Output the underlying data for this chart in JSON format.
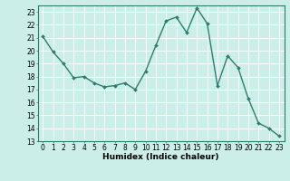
{
  "x": [
    0,
    1,
    2,
    3,
    4,
    5,
    6,
    7,
    8,
    9,
    10,
    11,
    12,
    13,
    14,
    15,
    16,
    17,
    18,
    19,
    20,
    21,
    22,
    23
  ],
  "y": [
    21.1,
    19.9,
    19.0,
    17.9,
    18.0,
    17.5,
    17.2,
    17.3,
    17.5,
    17.0,
    18.4,
    20.4,
    22.3,
    22.6,
    21.4,
    23.3,
    22.1,
    17.3,
    19.6,
    18.7,
    16.3,
    14.4,
    14.0,
    13.4
  ],
  "line_color": "#2d7d6e",
  "marker": "D",
  "marker_size": 2.0,
  "bg_color": "#cceee8",
  "grid_color": "#ffffff",
  "grid_minor_color": "#ddf5f0",
  "xlabel": "Humidex (Indice chaleur)",
  "xlim": [
    -0.5,
    23.5
  ],
  "ylim": [
    13,
    23.5
  ],
  "yticks": [
    13,
    14,
    15,
    16,
    17,
    18,
    19,
    20,
    21,
    22,
    23
  ],
  "xticks": [
    0,
    1,
    2,
    3,
    4,
    5,
    6,
    7,
    8,
    9,
    10,
    11,
    12,
    13,
    14,
    15,
    16,
    17,
    18,
    19,
    20,
    21,
    22,
    23
  ],
  "tick_fontsize": 5.5,
  "xlabel_fontsize": 6.5,
  "linewidth": 1.0,
  "spine_color": "#2d7d6e"
}
